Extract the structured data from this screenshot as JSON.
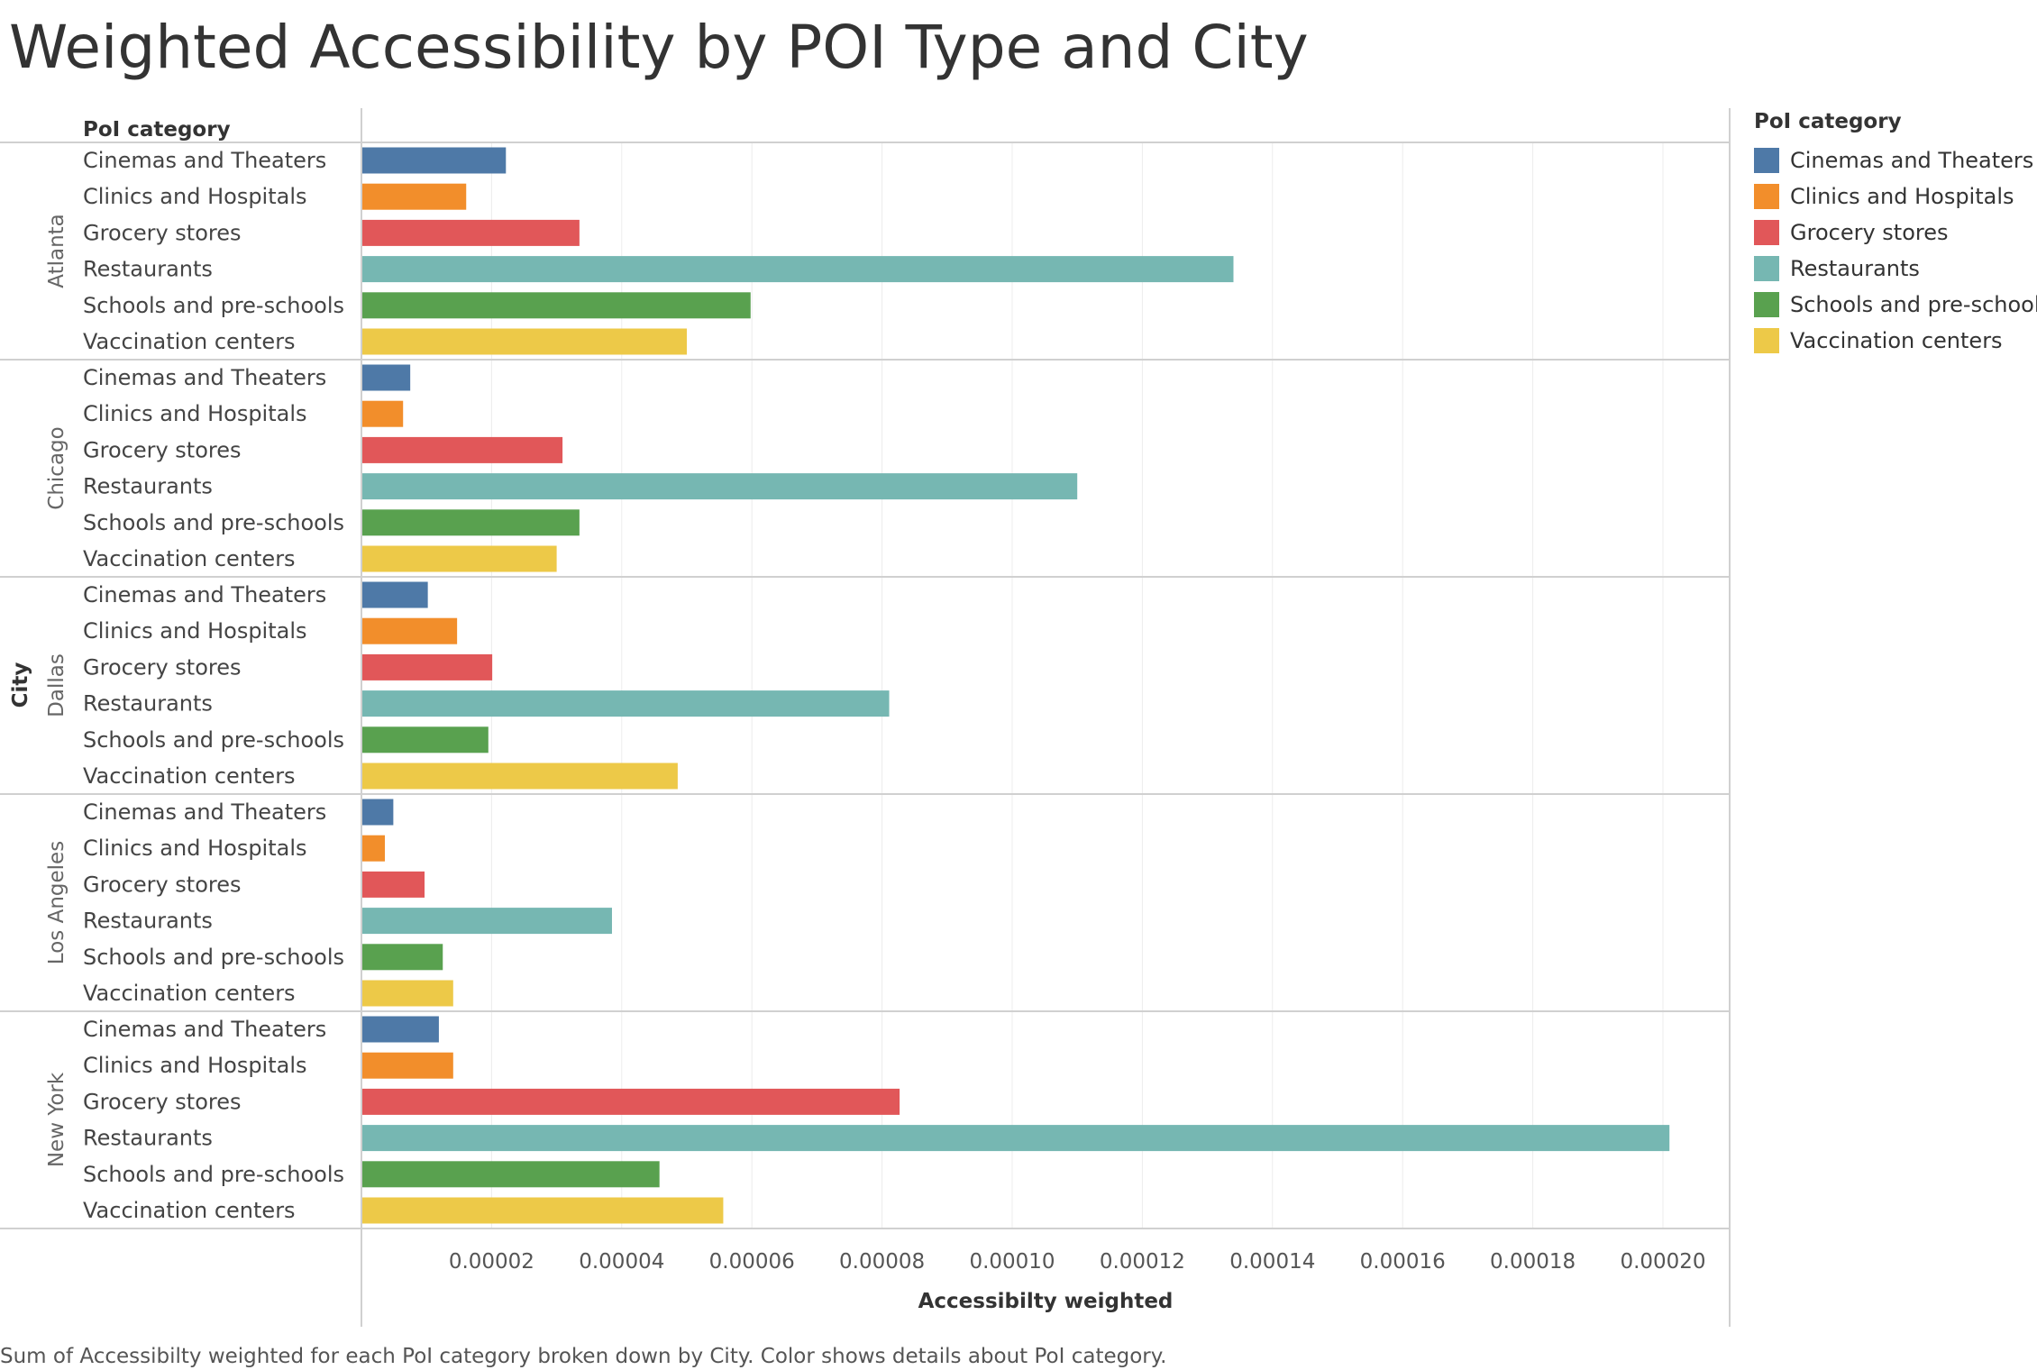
{
  "title": "Weighted Accessibility by POI Type and City",
  "caption": "Sum of Accessibilty weighted for each PoI category broken down by City.  Color shows details about PoI category.",
  "legend": {
    "title": "PoI category",
    "items": [
      {
        "label": "Cinemas and Theaters",
        "color": "#4e79a7"
      },
      {
        "label": "Clinics and Hospitals",
        "color": "#f28e2b"
      },
      {
        "label": "Grocery stores",
        "color": "#e15759"
      },
      {
        "label": "Restaurants",
        "color": "#76b7b2"
      },
      {
        "label": "Schools and pre-schools",
        "color": "#59a14f"
      },
      {
        "label": "Vaccination centers",
        "color": "#edc948"
      }
    ]
  },
  "chart_data": {
    "type": "bar",
    "orientation": "horizontal",
    "row_header": "PoI category",
    "group_header": "City",
    "xlabel": "Accessibilty weighted",
    "xlim": [
      0,
      0.000211
    ],
    "x_ticks": [
      "0.00002",
      "0.00004",
      "0.00006",
      "0.00008",
      "0.00010",
      "0.00012",
      "0.00014",
      "0.00016",
      "0.00018",
      "0.00020"
    ],
    "x_tick_values": [
      2e-05,
      4e-05,
      6e-05,
      8e-05,
      0.0001,
      0.00012,
      0.00014,
      0.00016,
      0.00018,
      0.0002
    ],
    "grid": true,
    "categories": [
      "Cinemas and Theaters",
      "Clinics and Hospitals",
      "Grocery stores",
      "Restaurants",
      "Schools and pre-schools",
      "Vaccination centers"
    ],
    "groups": [
      {
        "name": "Atlanta",
        "values": [
          2.22e-05,
          1.61e-05,
          3.35e-05,
          0.000134,
          5.98e-05,
          5e-05
        ]
      },
      {
        "name": "Chicago",
        "values": [
          7.5e-06,
          6.4e-06,
          3.09e-05,
          0.00011,
          3.35e-05,
          3e-05
        ]
      },
      {
        "name": "Dallas",
        "values": [
          1.02e-05,
          1.47e-05,
          2.01e-05,
          8.11e-05,
          1.95e-05,
          4.86e-05
        ]
      },
      {
        "name": "Los Angeles",
        "values": [
          4.9e-06,
          3.6e-06,
          9.7e-06,
          3.85e-05,
          1.25e-05,
          1.41e-05
        ]
      },
      {
        "name": "New York",
        "values": [
          1.19e-05,
          1.41e-05,
          8.27e-05,
          0.000201,
          4.58e-05,
          5.56e-05
        ]
      }
    ]
  }
}
